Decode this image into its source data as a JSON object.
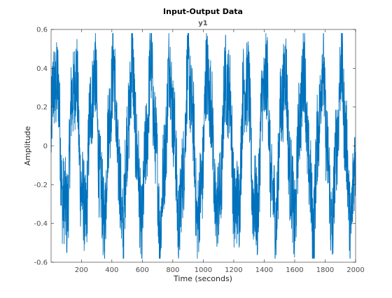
{
  "chart_data": {
    "type": "line",
    "title": "Input-Output Data",
    "subtitle": "y1",
    "xlabel": "Time (seconds)",
    "ylabel": "Amplitude",
    "xlim": [
      1,
      2000
    ],
    "ylim": [
      -0.6,
      0.6
    ],
    "grid": false,
    "legend": "none",
    "xticks": [
      200,
      400,
      600,
      800,
      1000,
      1200,
      1400,
      1600,
      1800,
      2000
    ],
    "xtick_labels": [
      "200",
      "400",
      "600",
      "800",
      "1000",
      "1200",
      "1400",
      "1600",
      "1800",
      "2000"
    ],
    "yticks": [
      -0.6,
      -0.4,
      -0.2,
      0,
      0.2,
      0.4,
      0.6
    ],
    "ytick_labels": [
      "-0.6",
      "-0.4",
      "-0.2",
      "0",
      "0.2",
      "0.4",
      "0.6"
    ],
    "series": [
      {
        "color": "#0072bd",
        "description_values": {
          "num_points": 2000,
          "dominant_period": 125,
          "approx_peak": 0.58,
          "approx_trough": -0.58
        }
      }
    ]
  }
}
